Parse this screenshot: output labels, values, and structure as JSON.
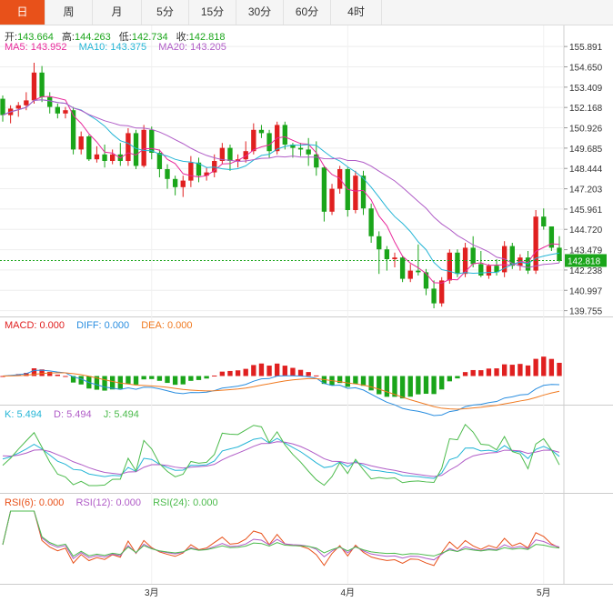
{
  "tabs": [
    "日",
    "周",
    "月",
    "5分",
    "15分",
    "30分",
    "60分",
    "4时"
  ],
  "active_tab": 0,
  "ohlc_legend": {
    "open_label": "开:",
    "open": "143.664",
    "high_label": "高:",
    "high": "144.263",
    "low_label": "低:",
    "low": "142.734",
    "close_label": "收:",
    "close": "142.818"
  },
  "ma_legend": {
    "ma5": "MA5: 143.952",
    "ma10": "MA10: 143.375",
    "ma20": "MA20: 143.205"
  },
  "macd_legend": {
    "macd": "MACD: 0.000",
    "diff": "DIFF: 0.000",
    "dea": "DEA: 0.000"
  },
  "kdj_legend": {
    "k": "K: 5.494",
    "d": "D: 5.494",
    "j": "J: 5.494"
  },
  "rsi_legend": {
    "rsi6": "RSI(6): 0.000",
    "rsi12": "RSI(12): 0.000",
    "rsi24": "RSI(24): 0.000"
  },
  "colors": {
    "up": "#e02020",
    "down": "#1aa51a",
    "ma5": "#e8299b",
    "ma10": "#24b5d6",
    "ma20": "#b05cc7",
    "diff": "#2a8ee0",
    "dea": "#f07a20",
    "k": "#24b5d6",
    "d": "#b05cc7",
    "j": "#4cbb4c",
    "accent": "#e8511a"
  },
  "chart_data": {
    "type": "candlestick",
    "price_axis_ticks": [
      "155.891",
      "154.650",
      "153.409",
      "152.168",
      "150.926",
      "149.685",
      "148.444",
      "147.203",
      "145.961",
      "144.720",
      "143.479",
      "142.238",
      "140.997",
      "139.755"
    ],
    "last_price": "142.818",
    "price_range": [
      139.4,
      156.4
    ],
    "x_labels": [
      "3月",
      "4月",
      "5月"
    ],
    "x_label_index": [
      19,
      44,
      69
    ],
    "candles": [
      [
        152.7,
        152.9,
        151.3,
        151.7
      ],
      [
        151.7,
        152.3,
        151.2,
        152.1
      ],
      [
        152.1,
        152.5,
        151.6,
        152.3
      ],
      [
        152.3,
        153.1,
        152.0,
        152.6
      ],
      [
        152.6,
        154.9,
        152.4,
        154.3
      ],
      [
        154.3,
        154.7,
        152.5,
        152.8
      ],
      [
        152.8,
        153.1,
        151.8,
        152.2
      ],
      [
        152.2,
        152.4,
        151.5,
        151.8
      ],
      [
        151.8,
        152.2,
        151.5,
        152.0
      ],
      [
        152.0,
        152.2,
        149.3,
        149.6
      ],
      [
        149.6,
        150.7,
        149.3,
        150.4
      ],
      [
        150.4,
        150.5,
        148.9,
        149.0
      ],
      [
        149.0,
        149.8,
        148.8,
        149.3
      ],
      [
        149.3,
        149.9,
        148.5,
        148.9
      ],
      [
        148.9,
        149.6,
        148.7,
        149.3
      ],
      [
        149.3,
        150.0,
        148.6,
        148.9
      ],
      [
        148.9,
        150.9,
        148.6,
        150.6
      ],
      [
        150.6,
        150.8,
        148.4,
        148.6
      ],
      [
        148.6,
        151.1,
        148.5,
        150.8
      ],
      [
        150.8,
        151.0,
        149.0,
        149.4
      ],
      [
        149.4,
        149.6,
        147.9,
        148.4
      ],
      [
        148.4,
        148.7,
        147.2,
        147.8
      ],
      [
        147.8,
        148.0,
        146.8,
        147.3
      ],
      [
        147.3,
        148.0,
        146.7,
        147.7
      ],
      [
        147.7,
        149.2,
        147.3,
        148.8
      ],
      [
        148.8,
        149.1,
        147.6,
        148.0
      ],
      [
        148.0,
        148.5,
        147.7,
        148.2
      ],
      [
        148.2,
        149.3,
        147.9,
        148.9
      ],
      [
        148.9,
        150.0,
        148.7,
        149.7
      ],
      [
        149.7,
        149.9,
        148.3,
        148.9
      ],
      [
        148.9,
        149.3,
        148.5,
        149.0
      ],
      [
        149.0,
        150.1,
        148.8,
        149.5
      ],
      [
        149.5,
        151.2,
        149.3,
        150.8
      ],
      [
        150.8,
        151.1,
        150.3,
        150.6
      ],
      [
        150.6,
        150.8,
        149.1,
        149.5
      ],
      [
        149.5,
        151.3,
        149.3,
        151.1
      ],
      [
        151.1,
        151.3,
        149.6,
        149.9
      ],
      [
        149.9,
        150.0,
        149.1,
        149.7
      ],
      [
        149.7,
        150.0,
        149.2,
        149.6
      ],
      [
        149.6,
        150.3,
        148.6,
        149.3
      ],
      [
        149.3,
        150.1,
        148.0,
        148.5
      ],
      [
        148.5,
        148.6,
        145.2,
        145.8
      ],
      [
        145.8,
        147.5,
        145.6,
        147.2
      ],
      [
        147.2,
        148.6,
        146.9,
        148.4
      ],
      [
        148.4,
        148.5,
        145.5,
        145.9
      ],
      [
        145.9,
        148.3,
        145.7,
        148.0
      ],
      [
        148.0,
        148.3,
        145.6,
        146.0
      ],
      [
        146.0,
        146.3,
        143.9,
        144.3
      ],
      [
        144.3,
        144.6,
        142.0,
        143.5
      ],
      [
        143.5,
        143.7,
        142.2,
        142.9
      ],
      [
        142.9,
        143.3,
        142.4,
        143.0
      ],
      [
        143.0,
        143.1,
        141.5,
        141.7
      ],
      [
        141.7,
        142.6,
        141.5,
        142.2
      ],
      [
        142.2,
        143.8,
        141.9,
        142.1
      ],
      [
        142.1,
        142.3,
        140.7,
        141.1
      ],
      [
        141.1,
        141.6,
        139.9,
        140.2
      ],
      [
        140.2,
        141.8,
        140.0,
        141.6
      ],
      [
        141.6,
        143.5,
        141.4,
        143.3
      ],
      [
        143.3,
        143.5,
        141.8,
        142.0
      ],
      [
        142.0,
        143.9,
        141.8,
        143.6
      ],
      [
        143.6,
        144.3,
        142.4,
        142.6
      ],
      [
        142.6,
        143.4,
        141.8,
        141.9
      ],
      [
        141.9,
        142.6,
        141.7,
        142.5
      ],
      [
        142.5,
        142.9,
        141.9,
        142.1
      ],
      [
        142.1,
        144.0,
        141.8,
        143.7
      ],
      [
        143.7,
        143.9,
        142.3,
        142.5
      ],
      [
        142.5,
        143.2,
        142.2,
        143.0
      ],
      [
        143.0,
        143.4,
        142.0,
        142.2
      ],
      [
        142.2,
        145.9,
        142.0,
        145.5
      ],
      [
        145.5,
        146.0,
        144.7,
        144.9
      ],
      [
        144.9,
        144.9,
        143.4,
        143.6
      ],
      [
        143.6,
        144.3,
        142.7,
        142.8
      ]
    ]
  }
}
